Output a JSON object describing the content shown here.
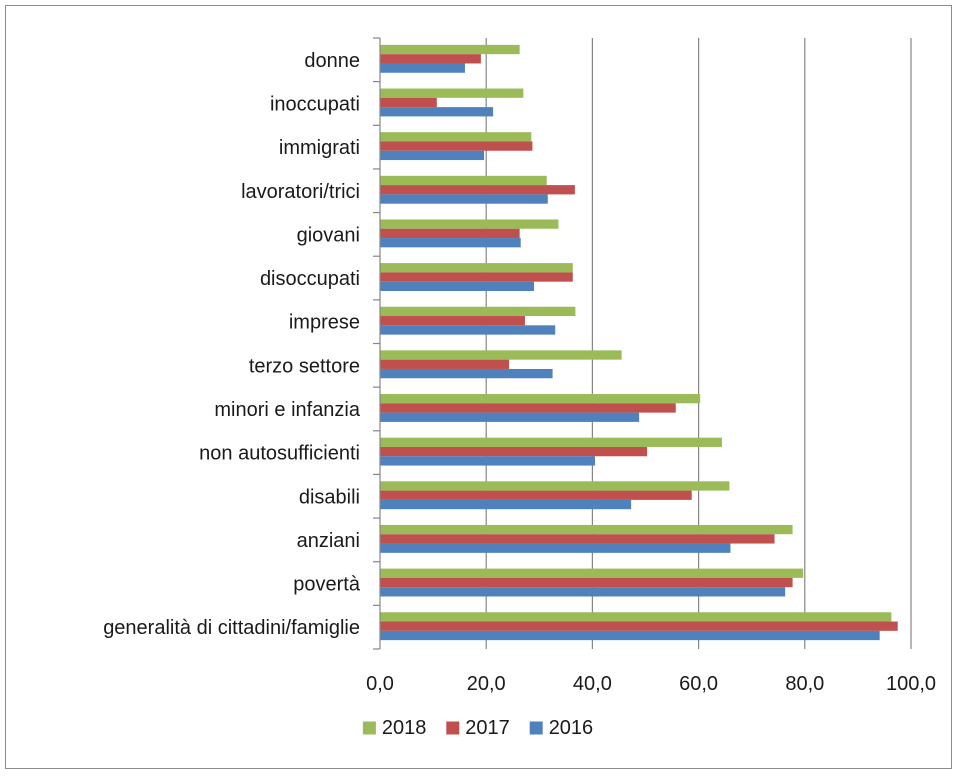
{
  "chart_data": {
    "type": "bar",
    "orientation": "horizontal",
    "categories": [
      "donne",
      "inoccupati",
      "immigrati",
      "lavoratori/trici",
      "giovani",
      "disoccupati",
      "imprese",
      "terzo settore",
      "minori e infanzia",
      "non autosufficienti",
      "disabili",
      "anziani",
      "povertà",
      "generalità di cittadini/famiglie"
    ],
    "series": [
      {
        "name": "2018",
        "color": "#9bbb59",
        "values": [
          26.3,
          27.0,
          28.5,
          31.4,
          33.6,
          36.3,
          36.8,
          45.5,
          60.3,
          64.4,
          65.8,
          77.7,
          79.7,
          96.3
        ]
      },
      {
        "name": "2017",
        "color": "#c0504d",
        "values": [
          19.0,
          10.7,
          28.7,
          36.7,
          26.3,
          36.3,
          27.3,
          24.3,
          55.7,
          50.3,
          58.7,
          74.3,
          77.7,
          97.5
        ]
      },
      {
        "name": "2016",
        "color": "#4f81bd",
        "values": [
          16.0,
          21.3,
          19.6,
          31.6,
          26.5,
          29.0,
          33.0,
          32.5,
          48.8,
          40.5,
          47.3,
          66.0,
          76.3,
          94.1
        ]
      }
    ],
    "xlim": [
      0,
      100
    ],
    "x_ticks": [
      "0,0",
      "20,0",
      "40,0",
      "60,0",
      "80,0",
      "100,0"
    ],
    "grid": "vertical",
    "legend_position": "bottom",
    "title": "",
    "xlabel": "",
    "ylabel": ""
  }
}
